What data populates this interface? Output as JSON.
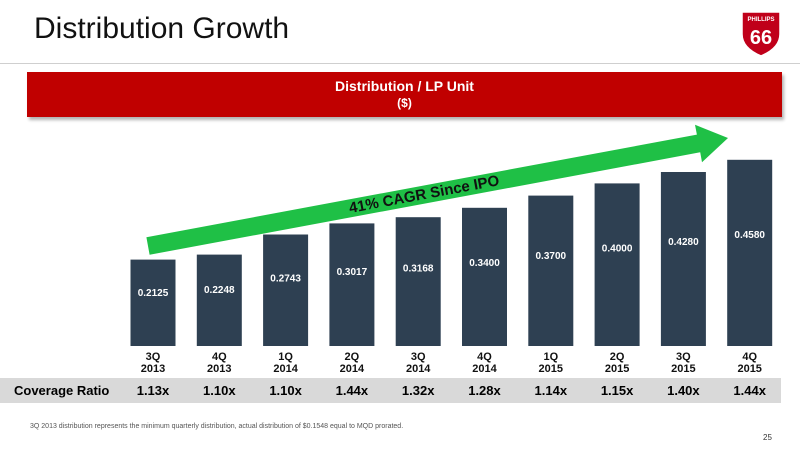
{
  "slide": {
    "title": "Distribution Growth",
    "footnote": "3Q 2013 distribution represents the minimum quarterly distribution, actual distribution of $0.1548 equal to MQD prorated.",
    "page_number": "25"
  },
  "logo": {
    "top": "PHILLIPS",
    "number": "66",
    "mark": "®"
  },
  "banner": {
    "title": "Distribution / LP Unit",
    "unit": "($)"
  },
  "coverage": {
    "label": "Coverage Ratio",
    "values": [
      "1.13x",
      "1.10x",
      "1.10x",
      "1.44x",
      "1.32x",
      "1.28x",
      "1.14x",
      "1.15x",
      "1.40x",
      "1.44x"
    ]
  },
  "colors": {
    "bar": "#2e4052",
    "arrow": "#1fc046",
    "banner": "#c00000",
    "logo": "#c0001a",
    "coverage_bg": "#d9d9d9"
  },
  "chart_data": {
    "type": "bar",
    "categories": [
      [
        "3Q",
        "2013"
      ],
      [
        "4Q",
        "2013"
      ],
      [
        "1Q",
        "2014"
      ],
      [
        "2Q",
        "2014"
      ],
      [
        "3Q",
        "2014"
      ],
      [
        "4Q",
        "2014"
      ],
      [
        "1Q",
        "2015"
      ],
      [
        "2Q",
        "2015"
      ],
      [
        "3Q",
        "2015"
      ],
      [
        "4Q",
        "2015"
      ]
    ],
    "values": [
      0.2125,
      0.2248,
      0.2743,
      0.3017,
      0.3168,
      0.34,
      0.37,
      0.4,
      0.428,
      0.458
    ],
    "labels": [
      "0.2125",
      "0.2248",
      "0.2743",
      "0.3017",
      "0.3168",
      "0.3400",
      "0.3700",
      "0.4000",
      "0.4280",
      "0.4580"
    ],
    "annotation": "41% CAGR Since IPO",
    "title": "Distribution / LP Unit",
    "ylabel": "($)",
    "grid": false,
    "ylim": [
      0,
      0.46
    ]
  }
}
